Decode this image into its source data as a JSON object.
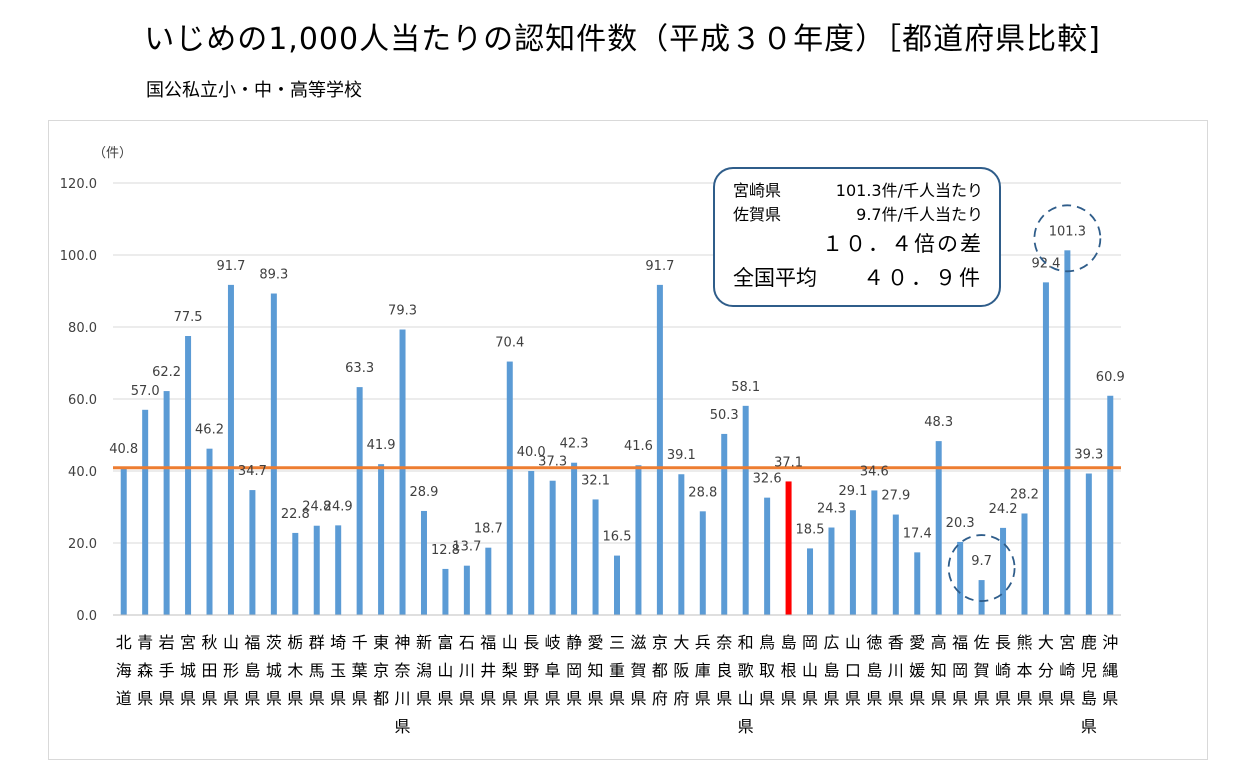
{
  "title": "いじめの1,000人当たりの認知件数（平成３０年度）［都道府県比較]",
  "subtitle": "国公私立小・中・高等学校",
  "info_box": {
    "line1_pref": "宮崎県",
    "line1_value": "101.3件/千人当たり",
    "line2_pref": "佐賀県",
    "line2_value": "9.7件/千人当たり",
    "ratio": "１０．４倍の差",
    "avg_label": "全国平均",
    "avg_value": "４０．９件"
  },
  "chart_data": {
    "type": "bar",
    "yunit": "（件）",
    "ylim": [
      0,
      120
    ],
    "yticks": [
      "0.0",
      "20.0",
      "40.0",
      "60.0",
      "80.0",
      "100.0",
      "120.0"
    ],
    "categories": [
      "北海道",
      "青森県",
      "岩手県",
      "宮城県",
      "秋田県",
      "山形県",
      "福島県",
      "茨城県",
      "栃木県",
      "群馬県",
      "埼玉県",
      "千葉県",
      "東京都",
      "神奈川県",
      "新潟県",
      "富山県",
      "石川県",
      "福井県",
      "山梨県",
      "長野県",
      "岐阜県",
      "静岡県",
      "愛知県",
      "三重県",
      "滋賀県",
      "京都府",
      "大阪府",
      "兵庫県",
      "奈良県",
      "和歌山県",
      "鳥取県",
      "島根県",
      "岡山県",
      "広島県",
      "山口県",
      "徳島県",
      "香川県",
      "愛媛県",
      "高知県",
      "福岡県",
      "佐賀県",
      "長崎県",
      "熊本県",
      "大分県",
      "宮崎県",
      "鹿児島県",
      "沖縄県"
    ],
    "values": [
      40.8,
      57.0,
      62.2,
      77.5,
      46.2,
      91.7,
      34.7,
      89.3,
      22.8,
      24.8,
      24.9,
      63.3,
      41.9,
      79.3,
      28.9,
      12.8,
      13.7,
      18.7,
      70.4,
      40.0,
      37.3,
      42.3,
      32.1,
      16.5,
      41.6,
      91.7,
      39.1,
      28.8,
      50.3,
      58.1,
      32.6,
      37.1,
      18.5,
      24.3,
      29.1,
      34.6,
      27.9,
      17.4,
      48.3,
      20.3,
      9.7,
      24.2,
      28.2,
      92.4,
      101.3,
      39.3,
      60.9
    ],
    "value_labels": [
      "40.8",
      "57.0",
      "62.2",
      "77.5",
      "46.2",
      "91.7",
      "34.7",
      "89.3",
      "22.8",
      "24.8",
      "24.9",
      "63.3",
      "41.9",
      "79.3",
      "28.9",
      "12.8",
      "13.7",
      "18.7",
      "70.4",
      "40.0",
      "37.3",
      "42.3",
      "32.1",
      "16.5",
      "41.6",
      "91.7",
      "39.1",
      "28.8",
      "50.3",
      "58.1",
      "32.6",
      "37.1",
      "18.5",
      "24.3",
      "29.1",
      "34.6",
      "27.9",
      "17.4",
      "48.3",
      "20.3",
      "9.7",
      "24.2",
      "28.2",
      "92.4",
      "101.3",
      "39.3",
      "60.9"
    ],
    "highlight_index": 31,
    "circled_indices": [
      40,
      44
    ],
    "average": 40.9,
    "grid": true,
    "colors": {
      "bar": "#5b9bd5",
      "highlight": "#ff0000",
      "average_line": "#ed7d31",
      "circle": "#2f5d8a",
      "grid": "#d9d9d9"
    }
  }
}
